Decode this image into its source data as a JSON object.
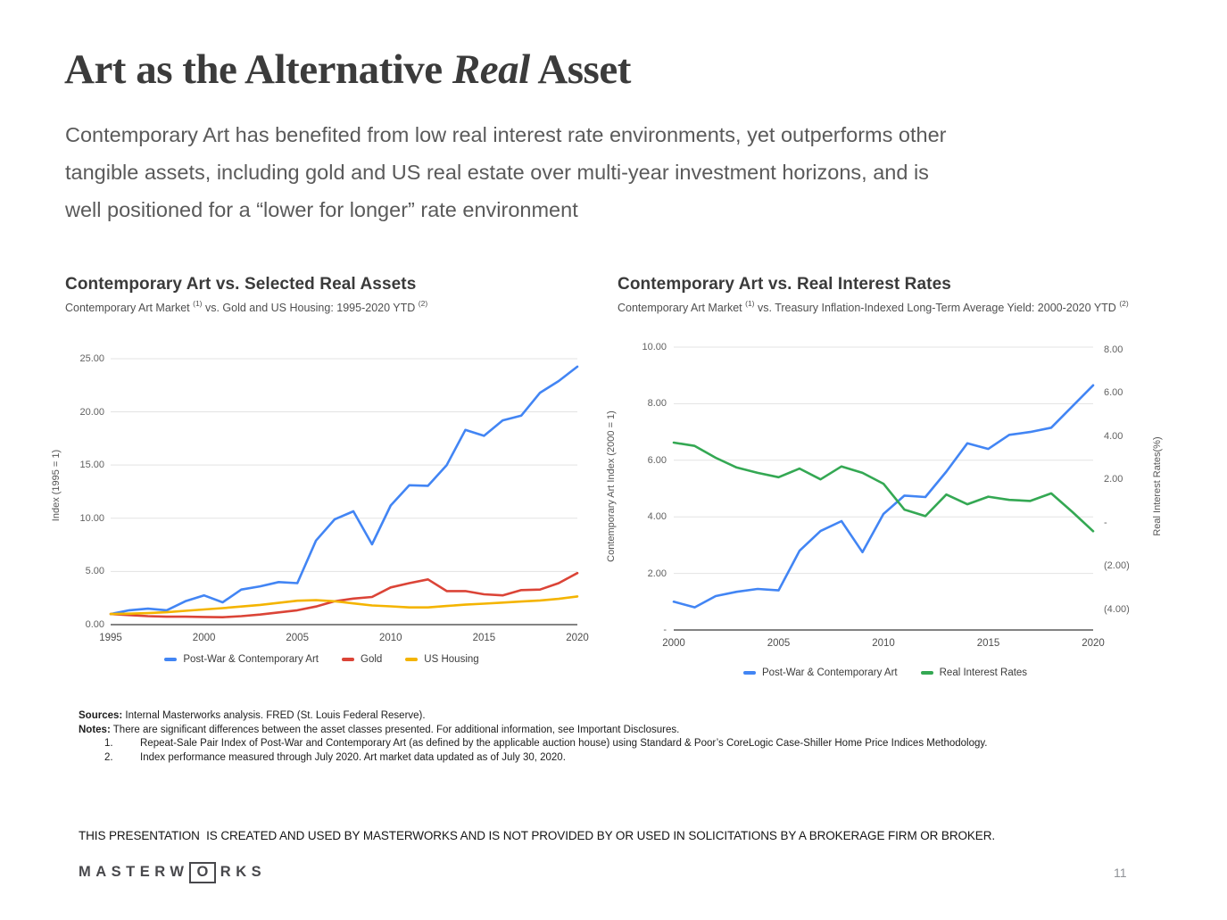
{
  "page": {
    "title_part1": "Art as the Alternative ",
    "title_italic": "Real",
    "title_part2": " Asset",
    "intro_lines": [
      "Contemporary Art has benefited from low real interest rate environments, yet outperforms other",
      "tangible assets, including gold and US real estate over multi-year investment horizons, and is",
      "well positioned for a “lower for longer” rate environment"
    ],
    "disclaimer": "THIS PRESENTATION  IS CREATED AND USED BY MASTERWORKS AND IS NOT PROVIDED BY OR USED IN SOLICITATIONS BY A BROKERAGE FIRM OR BROKER.",
    "page_number": "11",
    "logo": {
      "part1": "MASTERW",
      "o": "O",
      "part2": "RKS"
    }
  },
  "charts": {
    "left": {
      "title": "Contemporary Art vs. Selected Real Assets",
      "subtitle_pre": "Contemporary Art Market ",
      "sup1": "(1)",
      "subtitle_mid": " vs. Gold and US Housing: 1995-2020 YTD ",
      "sup2": "(2)",
      "y_axis_title": "Index (1995 = 1)"
    },
    "right": {
      "title": "Contemporary Art vs. Real Interest Rates",
      "subtitle_pre": "Contemporary Art Market ",
      "sup1": "(1)",
      "subtitle_mid": " vs. Treasury Inflation-Indexed Long-Term Average Yield: 2000-2020 YTD ",
      "sup2": "(2)",
      "y_axis_title_left": "Contemporary Art Index (2000 = 1)",
      "y_axis_title_right": "Real Interest Rates(%)"
    }
  },
  "chart_data": [
    {
      "type": "line",
      "title": "Contemporary Art vs. Selected Real Assets",
      "x": [
        1995,
        1996,
        1997,
        1998,
        1999,
        2000,
        2001,
        2002,
        2003,
        2004,
        2005,
        2006,
        2007,
        2008,
        2009,
        2010,
        2011,
        2012,
        2013,
        2014,
        2015,
        2016,
        2017,
        2018,
        2019,
        2020
      ],
      "xlim": [
        1995,
        2020
      ],
      "x_ticks": [
        {
          "label": "1995",
          "v": 1995
        },
        {
          "label": "2000",
          "v": 2000
        },
        {
          "label": "2005",
          "v": 2005
        },
        {
          "label": "2010",
          "v": 2010
        },
        {
          "label": "2015",
          "v": 2015
        },
        {
          "label": "2020",
          "v": 2020
        }
      ],
      "left_axis": {
        "lim": [
          0,
          25.75
        ],
        "ticks": [
          {
            "label": "0.00",
            "v": 0
          },
          {
            "label": "5.00",
            "v": 5
          },
          {
            "label": "10.00",
            "v": 10
          },
          {
            "label": "15.00",
            "v": 15
          },
          {
            "label": "20.00",
            "v": 20
          },
          {
            "label": "25.00",
            "v": 25
          }
        ]
      },
      "gridlines": [
        5,
        10,
        15,
        20,
        25
      ],
      "legend_position": "bottom",
      "series": [
        {
          "name": "Post-War & Contemporary Art",
          "color": "#4285f4",
          "axis": "left",
          "values": [
            1.0,
            1.35,
            1.5,
            1.35,
            2.2,
            2.75,
            2.1,
            3.3,
            3.6,
            4.0,
            3.9,
            7.9,
            9.9,
            10.65,
            7.55,
            11.2,
            13.1,
            13.05,
            15.0,
            18.3,
            17.75,
            19.2,
            19.65,
            21.8,
            22.9,
            24.25
          ]
        },
        {
          "name": "Gold",
          "color": "#db4437",
          "axis": "left",
          "values": [
            1.0,
            0.9,
            0.8,
            0.75,
            0.75,
            0.72,
            0.7,
            0.8,
            0.95,
            1.15,
            1.35,
            1.7,
            2.2,
            2.45,
            2.6,
            3.5,
            3.9,
            4.25,
            3.15,
            3.15,
            2.85,
            2.75,
            3.25,
            3.3,
            3.9,
            4.85
          ]
        },
        {
          "name": "US Housing",
          "color": "#f4b400",
          "axis": "left",
          "values": [
            1.0,
            1.03,
            1.08,
            1.17,
            1.3,
            1.43,
            1.55,
            1.7,
            1.85,
            2.05,
            2.25,
            2.3,
            2.2,
            2.0,
            1.8,
            1.72,
            1.62,
            1.62,
            1.75,
            1.88,
            1.97,
            2.07,
            2.17,
            2.27,
            2.42,
            2.65
          ]
        }
      ]
    },
    {
      "type": "line",
      "title": "Contemporary Art vs. Real Interest Rates",
      "x": [
        2000,
        2001,
        2002,
        2003,
        2004,
        2005,
        2006,
        2007,
        2008,
        2009,
        2010,
        2011,
        2012,
        2013,
        2014,
        2015,
        2016,
        2017,
        2018,
        2019,
        2020
      ],
      "xlim": [
        2000,
        2020
      ],
      "x_ticks": [
        {
          "label": "2000",
          "v": 2000
        },
        {
          "label": "2005",
          "v": 2005
        },
        {
          "label": "2010",
          "v": 2010
        },
        {
          "label": "2015",
          "v": 2015
        },
        {
          "label": "2020",
          "v": 2020
        }
      ],
      "left_axis": {
        "lim": [
          0,
          10
        ],
        "ticks": [
          {
            "label": "-",
            "v": 0
          },
          {
            "label": "2.00",
            "v": 2
          },
          {
            "label": "4.00",
            "v": 4
          },
          {
            "label": "6.00",
            "v": 6
          },
          {
            "label": "8.00",
            "v": 8
          },
          {
            "label": "10.00",
            "v": 10
          }
        ]
      },
      "right_axis": {
        "lim": [
          -4.97,
          8.12
        ],
        "ticks": [
          {
            "label": "8.00",
            "v": 8
          },
          {
            "label": "6.00",
            "v": 6
          },
          {
            "label": "4.00",
            "v": 4
          },
          {
            "label": "2.00",
            "v": 2
          },
          {
            "label": "-",
            "v": 0
          },
          {
            "label": "(2.00)",
            "v": -2
          },
          {
            "label": "(4.00)",
            "v": -4
          }
        ]
      },
      "gridlines": [
        2,
        4,
        6,
        8,
        10
      ],
      "legend_position": "bottom",
      "series": [
        {
          "name": "Post-War & Contemporary Art",
          "color": "#4285f4",
          "axis": "left",
          "values": [
            1.0,
            0.8,
            1.2,
            1.35,
            1.45,
            1.4,
            2.8,
            3.5,
            3.85,
            2.75,
            4.1,
            4.75,
            4.7,
            5.6,
            6.6,
            6.4,
            6.9,
            7.0,
            7.15,
            7.9,
            8.65
          ]
        },
        {
          "name": "Real Interest Rates",
          "color": "#34a853",
          "axis": "right",
          "values": [
            3.7,
            3.55,
            3.0,
            2.55,
            2.3,
            2.1,
            2.5,
            2.0,
            2.6,
            2.3,
            1.8,
            0.6,
            0.3,
            1.3,
            0.85,
            1.2,
            1.05,
            1.0,
            1.35,
            0.5,
            -0.4
          ]
        }
      ]
    }
  ],
  "footnotes": {
    "sources_label": "Sources:",
    "sources_text": " Internal Masterworks analysis. FRED (St. Louis Federal Reserve).",
    "notes_label": "Notes:",
    "notes_text": "  There are significant differences between the asset classes presented. For additional information, see Important Disclosures.",
    "items": [
      {
        "num": "1.",
        "text": "Repeat-Sale Pair Index of Post-War and Contemporary Art (as defined by the applicable auction house) using Standard & Poor’s CoreLogic Case-Shiller Home Price Indices Methodology."
      },
      {
        "num": "2.",
        "text": "Index performance measured through July 2020. Art market data updated as of July 30, 2020."
      }
    ]
  }
}
